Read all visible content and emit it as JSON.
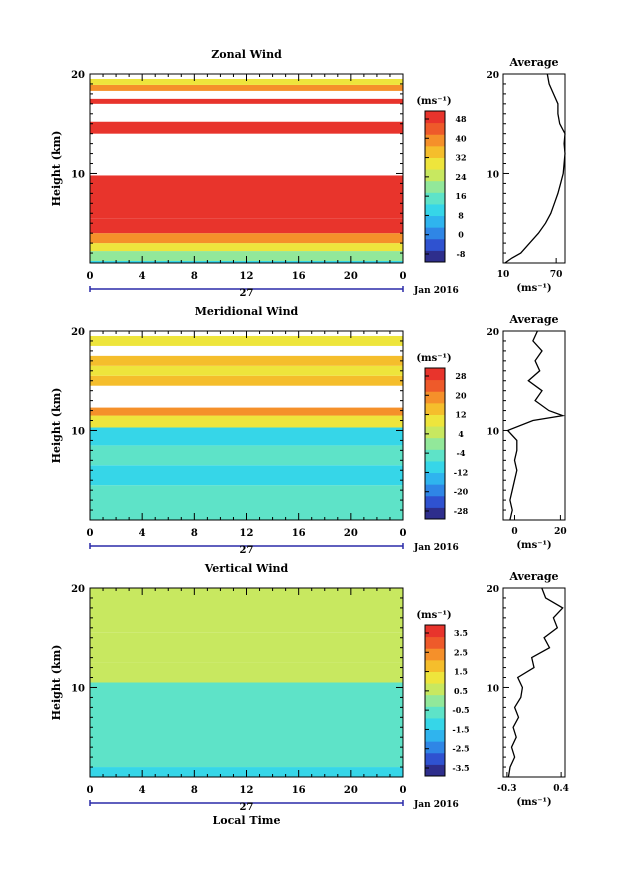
{
  "chart_data": [
    {
      "type": "heatmap",
      "title": "Zonal Wind",
      "ylabel": "Height (km)",
      "ylim": [
        1,
        20
      ],
      "x_ticks": [
        "0",
        "4",
        "8",
        "12",
        "16",
        "20",
        "0"
      ],
      "y_ticks": [
        "10",
        "20"
      ],
      "date_label": "27",
      "date_suffix": "Jan 2016",
      "colorbar": {
        "unit": "(ms⁻¹)",
        "ticks": [
          "48",
          "40",
          "32",
          "24",
          "16",
          "8",
          "0",
          "-8"
        ],
        "range": [
          -8,
          48
        ]
      },
      "regions": [
        {
          "h0": 0,
          "h1": 1.2,
          "value": 12
        },
        {
          "h0": 1.2,
          "h1": 2.2,
          "value": 20
        },
        {
          "h0": 2.2,
          "h1": 3.0,
          "value": 28
        },
        {
          "h0": 3.0,
          "h1": 4.0,
          "value": 36
        },
        {
          "h0": 4.0,
          "h1": 5.5,
          "value": 44
        },
        {
          "h0": 5.5,
          "h1": 9.8,
          "value": 52
        },
        {
          "h0": 14.0,
          "h1": 15.2,
          "value": 48
        },
        {
          "h0": 17.0,
          "h1": 17.5,
          "value": 46
        },
        {
          "h0": 18.3,
          "h1": 18.9,
          "value": 36
        },
        {
          "h0": 18.9,
          "h1": 19.5,
          "value": 30
        }
      ],
      "average": {
        "title": "Average",
        "xlabel": "(ms⁻¹)",
        "x_ticks": [
          "10",
          "70"
        ],
        "xlim": [
          10,
          80
        ],
        "heights": [
          1,
          1.5,
          2,
          3,
          4,
          5,
          6,
          7,
          8,
          9,
          10,
          11,
          12,
          13,
          14,
          15,
          16,
          17,
          18,
          19,
          20
        ],
        "values": [
          12,
          20,
          30,
          40,
          50,
          58,
          64,
          68,
          72,
          75,
          78,
          79,
          80,
          79,
          80,
          74,
          72,
          72,
          67,
          62,
          60
        ]
      }
    },
    {
      "type": "heatmap",
      "title": "Meridional Wind",
      "ylabel": "Height (km)",
      "ylim": [
        1,
        20
      ],
      "x_ticks": [
        "0",
        "4",
        "8",
        "12",
        "16",
        "20",
        "0"
      ],
      "y_ticks": [
        "10",
        "20"
      ],
      "date_label": "27",
      "date_suffix": "Jan 2016",
      "colorbar": {
        "unit": "(ms⁻¹)",
        "ticks": [
          "28",
          "20",
          "12",
          "4",
          "-4",
          "-12",
          "-20",
          "-28"
        ],
        "range": [
          -28,
          28
        ]
      },
      "regions": [
        {
          "h0": 0,
          "h1": 4.5,
          "value": -6
        },
        {
          "h0": 4.5,
          "h1": 6.5,
          "value": -8
        },
        {
          "h0": 6.5,
          "h1": 8.5,
          "value": -4
        },
        {
          "h0": 8.5,
          "h1": 10.3,
          "value": -10
        },
        {
          "h0": 10.3,
          "h1": 11.5,
          "value": 10
        },
        {
          "h0": 11.5,
          "h1": 12.3,
          "value": 18
        },
        {
          "h0": 14.5,
          "h1": 15.5,
          "value": 14
        },
        {
          "h0": 15.5,
          "h1": 16.5,
          "value": 8
        },
        {
          "h0": 16.5,
          "h1": 17.5,
          "value": 12
        },
        {
          "h0": 18.5,
          "h1": 19.5,
          "value": 10
        }
      ],
      "average": {
        "title": "Average",
        "xlabel": "(ms⁻¹)",
        "x_ticks": [
          "0",
          "20"
        ],
        "xlim": [
          -5,
          22
        ],
        "heights": [
          1,
          2,
          3,
          4,
          5,
          6,
          7,
          8,
          9,
          10,
          11,
          11.5,
          12,
          13,
          14,
          15,
          16,
          17,
          18,
          19,
          20
        ],
        "values": [
          -2,
          -1,
          -2,
          -1,
          0,
          1,
          0,
          1,
          1,
          -3,
          8,
          21,
          15,
          9,
          12,
          6,
          11,
          9,
          12,
          8,
          10
        ]
      }
    },
    {
      "type": "heatmap",
      "title": "Vertical Wind",
      "xlabel": "Local Time",
      "ylabel": "Height (km)",
      "ylim": [
        1,
        20
      ],
      "x_ticks": [
        "0",
        "4",
        "8",
        "12",
        "16",
        "20",
        "0"
      ],
      "y_ticks": [
        "10",
        "20"
      ],
      "date_label": "27",
      "date_suffix": "Jan 2016",
      "colorbar": {
        "unit": "(ms⁻¹)",
        "ticks": [
          "3.5",
          "2.5",
          "1.5",
          "0.5",
          "-0.5",
          "-1.5",
          "-2.5",
          "-3.5"
        ],
        "range": [
          -3.5,
          3.5
        ]
      },
      "regions": [
        {
          "h0": 0,
          "h1": 2,
          "value": -0.9
        },
        {
          "h0": 2,
          "h1": 10.5,
          "value": -0.3
        },
        {
          "h0": 10.5,
          "h1": 12.5,
          "value": 0.5
        },
        {
          "h0": 12.5,
          "h1": 15.5,
          "value": 0.8
        },
        {
          "h0": 15.5,
          "h1": 20,
          "value": 0.4
        }
      ],
      "average": {
        "title": "Average",
        "xlabel": "(ms⁻¹)",
        "x_ticks": [
          "-0.3",
          "0.4"
        ],
        "xlim": [
          -0.35,
          0.45
        ],
        "heights": [
          1,
          2,
          3,
          4,
          5,
          6,
          7,
          8,
          9,
          10,
          11,
          12,
          13,
          14,
          15,
          16,
          17,
          18,
          19,
          20
        ],
        "values": [
          -0.28,
          -0.26,
          -0.2,
          -0.24,
          -0.18,
          -0.22,
          -0.15,
          -0.2,
          -0.12,
          -0.1,
          -0.16,
          0.05,
          0.02,
          0.25,
          0.18,
          0.35,
          0.3,
          0.42,
          0.2,
          0.15
        ]
      }
    }
  ]
}
